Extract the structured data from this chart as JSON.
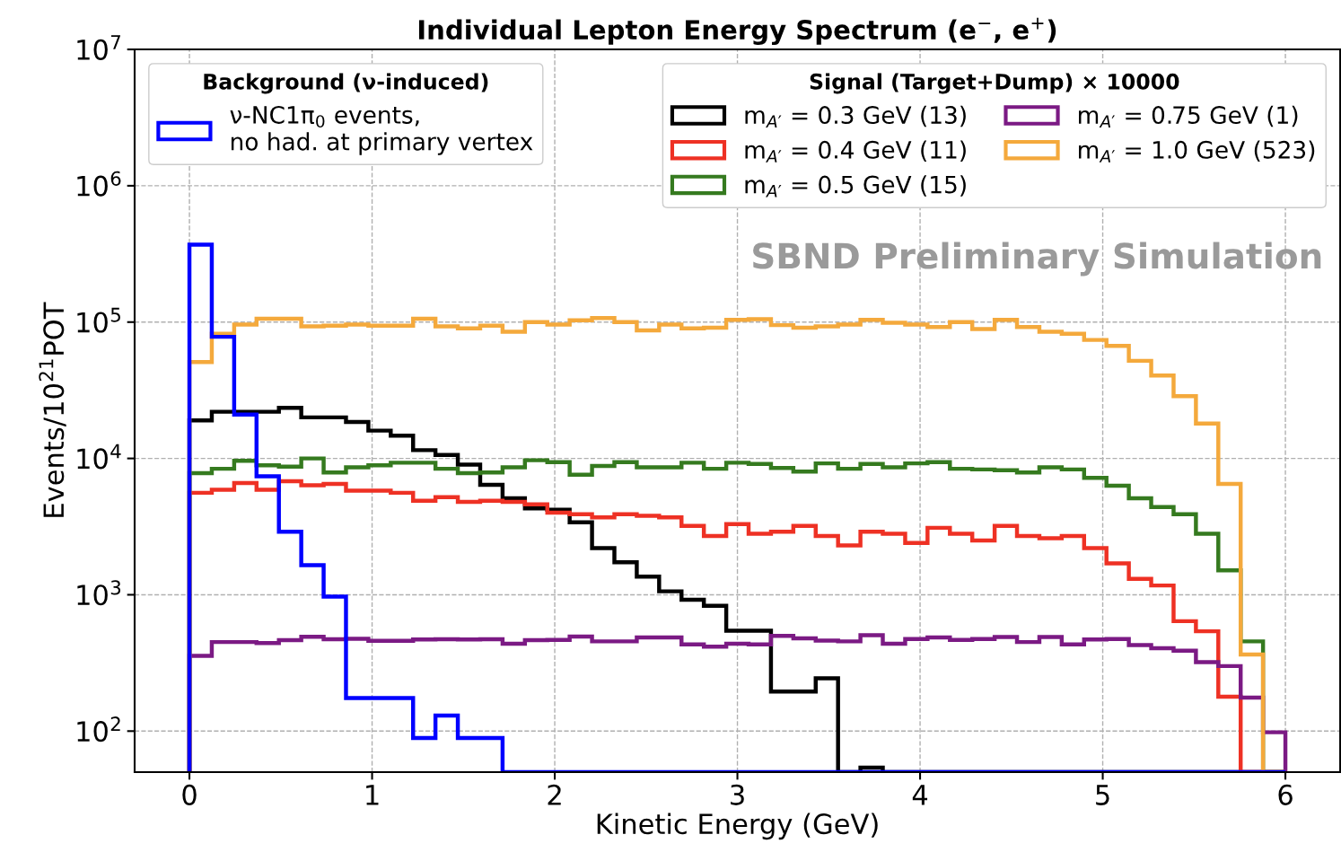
{
  "chart_data": {
    "type": "histogram",
    "title": "Individual Lepton Energy Spectrum (e$^{−}$, e$^{+}$)",
    "xlabel": "Kinetic Energy (GeV)",
    "ylabel": "Events/10$^{21}$POT",
    "legend_title": "Signal (Target+Dump) × 10000",
    "annotations": [
      "Background (ν-induced)",
      "SBND Preliminary Simulation"
    ],
    "bins": [
      0,
      0.1224,
      0.2449,
      0.3673,
      0.4898,
      0.6122,
      0.7347,
      0.8571,
      0.9796,
      1.102,
      1.2245,
      1.3469,
      1.4694,
      1.5918,
      1.7143,
      1.8367,
      1.9592,
      2.0816,
      2.2041,
      2.3265,
      2.449,
      2.5714,
      2.6939,
      2.8163,
      2.9388,
      3.0612,
      3.1837,
      3.3061,
      3.4286,
      3.551,
      3.6735,
      3.7959,
      3.9184,
      4.0408,
      4.1633,
      4.2857,
      4.4082,
      4.5306,
      4.6531,
      4.7755,
      4.898,
      5.0204,
      5.1429,
      5.2653,
      5.3878,
      5.5102,
      5.6327,
      5.7551,
      5.8776,
      6.0
    ],
    "series": [
      {
        "name": "ν-NC1π$_{0}$ events,\nno had. at primary vertex",
        "color": "#0000ff",
        "values": [
          370000,
          78000,
          21000,
          7400,
          2900,
          1650,
          970,
          175,
          175,
          175,
          89,
          130,
          89,
          89,
          null,
          null,
          null,
          null,
          null,
          null,
          null,
          null,
          null,
          null,
          null,
          null,
          null,
          null,
          null,
          null,
          null,
          null,
          null,
          null,
          null,
          null,
          null,
          null,
          null,
          null,
          null,
          null,
          null,
          null,
          null,
          null,
          null,
          null,
          null
        ]
      },
      {
        "name": "m$_{A′}$ = 0.3 GeV (13)",
        "color": "#000000",
        "values": [
          19000,
          22000,
          22000,
          22000,
          23500,
          20000,
          20000,
          18500,
          16000,
          14700,
          11500,
          10600,
          9000,
          6400,
          5100,
          4300,
          4200,
          3400,
          2200,
          1730,
          1360,
          1060,
          920,
          830,
          545,
          545,
          195,
          195,
          244,
          null,
          54,
          null,
          null,
          null,
          null,
          null,
          null,
          null,
          null,
          null,
          null,
          null,
          null,
          null,
          null,
          null,
          null,
          null,
          null
        ]
      },
      {
        "name": "m$_{A′}$ = 0.4 GeV (11)",
        "color": "#ee3124",
        "values": [
          5600,
          5900,
          6600,
          5900,
          6800,
          6350,
          6500,
          5800,
          5800,
          5600,
          4900,
          5200,
          4800,
          4900,
          4800,
          4600,
          4000,
          3900,
          3700,
          3900,
          3800,
          3700,
          3200,
          2700,
          3300,
          2800,
          2900,
          3200,
          2700,
          2300,
          2900,
          2800,
          2400,
          3100,
          2800,
          2500,
          3200,
          2700,
          2600,
          2700,
          2200,
          1700,
          1310,
          1170,
          640,
          540,
          179,
          null,
          null
        ]
      },
      {
        "name": "m$_{A′}$ = 0.5 GeV (15)",
        "color": "#357a1f",
        "values": [
          7800,
          8400,
          9600,
          8900,
          8700,
          10000,
          7900,
          8600,
          8900,
          9300,
          9300,
          8400,
          7800,
          7900,
          8600,
          9700,
          9400,
          7600,
          8800,
          9400,
          8600,
          8600,
          9300,
          8400,
          9300,
          9100,
          8500,
          8000,
          9200,
          8400,
          9100,
          8600,
          9200,
          9400,
          8400,
          8300,
          8200,
          7900,
          8600,
          8300,
          7200,
          6300,
          5100,
          4400,
          3900,
          2800,
          1510,
          455,
          null
        ]
      },
      {
        "name": "m$_{A′}$ = 0.75 GeV (1)",
        "color": "#7b1a84",
        "values": [
          356,
          450,
          450,
          443,
          465,
          492,
          472,
          475,
          460,
          460,
          470,
          472,
          470,
          472,
          438,
          465,
          467,
          494,
          455,
          455,
          487,
          487,
          432,
          416,
          438,
          432,
          499,
          479,
          461,
          455,
          505,
          438,
          474,
          487,
          467,
          474,
          490,
          450,
          490,
          432,
          470,
          474,
          427,
          405,
          389,
          321,
          300,
          176,
          98
        ]
      },
      {
        "name": "m$_{A′}$ = 1.0 GeV (523)",
        "color": "#f4a93c",
        "values": [
          51000,
          82000,
          96000,
          106000,
          106000,
          93000,
          94000,
          96000,
          94000,
          94000,
          106000,
          93000,
          90000,
          94000,
          85000,
          100000,
          96000,
          103000,
          107000,
          100000,
          87000,
          96000,
          90000,
          91000,
          104000,
          105000,
          95000,
          91000,
          93000,
          96000,
          104000,
          99000,
          96000,
          92000,
          100000,
          89000,
          104000,
          92000,
          85000,
          82000,
          74000,
          67000,
          52000,
          40600,
          28600,
          18000,
          6500,
          365,
          null
        ]
      }
    ],
    "log": "y",
    "xlim": [
      -0.3,
      6.3
    ],
    "xticks": [
      0,
      1,
      2,
      3,
      4,
      5,
      6
    ],
    "ylim": [
      50,
      10000000
    ],
    "yticks": [
      {
        "value": 100,
        "label": "10$^{2}$"
      },
      {
        "value": 1000,
        "label": "10$^{3}$"
      },
      {
        "value": 10000,
        "label": "10$^{4}$"
      },
      {
        "value": 100000,
        "label": "10$^{5}$"
      },
      {
        "value": 1000000,
        "label": "10$^{6}$"
      },
      {
        "value": 10000000,
        "label": "10$^{7}$"
      }
    ],
    "grid": true,
    "legend": "top"
  }
}
